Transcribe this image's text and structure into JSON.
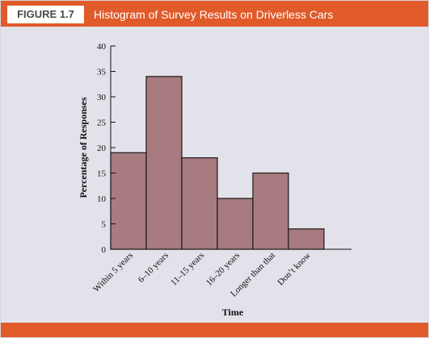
{
  "figure": {
    "label": "FIGURE 1.7",
    "title": "Histogram of Survey Results on Driverless Cars"
  },
  "colors": {
    "header": "#e05a2a",
    "panel": "#e3e1e9",
    "bar": "#a87b80",
    "bar_edge": "#1a1a1a"
  },
  "chart_data": {
    "type": "bar",
    "title": "Histogram of Survey Results on Driverless Cars",
    "categories": [
      "Within 5 years",
      "6–10 years",
      "11–15 years",
      "16–20 years",
      "Longer than that",
      "Don’t know"
    ],
    "values": [
      19,
      34,
      18,
      10,
      15,
      4
    ],
    "xlabel": "Time",
    "ylabel": "Percentage of Responses",
    "ylim": [
      0,
      40
    ],
    "yticks": [
      0,
      5,
      10,
      15,
      20,
      25,
      30,
      35,
      40
    ],
    "grid": false,
    "legend": "none"
  }
}
